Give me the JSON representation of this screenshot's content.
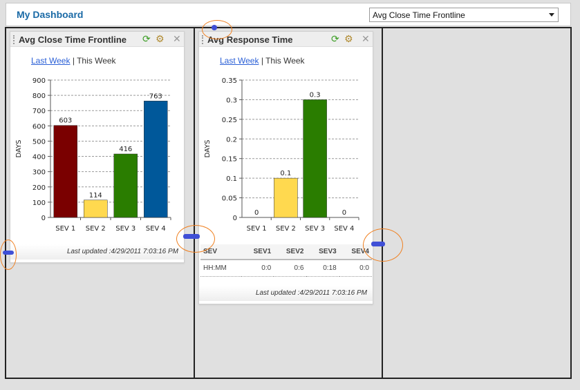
{
  "header": {
    "title": "My Dashboard",
    "select_value": "Avg Close Time Frontline"
  },
  "widgets": [
    {
      "title": "Avg Close Time Frontline",
      "link_last": "Last Week",
      "separator": "|",
      "link_this": "This Week",
      "footer": "Last updated :4/29/2011 7:03:16 PM"
    },
    {
      "title": "Avg Response Time",
      "link_last": "Last Week",
      "separator": "|",
      "link_this": "This Week",
      "footer": "Last updated :4/29/2011 7:03:16 PM",
      "table": {
        "headers": [
          "SEV",
          "SEV1",
          "SEV2",
          "SEV3",
          "SEV4"
        ],
        "rows": [
          [
            "HH:MM",
            "0:0",
            "0:6",
            "0:18",
            "0:0"
          ]
        ]
      }
    }
  ],
  "chart_data": [
    {
      "type": "bar",
      "ylabel": "DAYS",
      "categories": [
        "SEV 1",
        "SEV 2",
        "SEV 3",
        "SEV 4"
      ],
      "values": [
        603,
        114,
        416,
        763
      ],
      "labels": [
        "603",
        "114",
        "416",
        "763"
      ],
      "ylim": [
        0,
        900
      ],
      "yticks": [
        "0",
        "100",
        "200",
        "300",
        "400",
        "500",
        "600",
        "700",
        "800",
        "900"
      ],
      "colors": [
        "#7a0000",
        "#ffd94f",
        "#2a7d00",
        "#00589a"
      ],
      "grid": true
    },
    {
      "type": "bar",
      "ylabel": "DAYS",
      "categories": [
        "SEV 1",
        "SEV 2",
        "SEV 3",
        "SEV 4"
      ],
      "values": [
        0,
        0.1,
        0.3,
        0
      ],
      "labels": [
        "0",
        "0.1",
        "0.3",
        "0"
      ],
      "ylim": [
        0,
        0.35
      ],
      "yticks": [
        "0",
        "0.05",
        "0.1",
        "0.15",
        "0.2",
        "0.25",
        "0.3",
        "0.35"
      ],
      "colors": [
        "#7a0000",
        "#ffd94f",
        "#2a7d00",
        "#00589a"
      ],
      "grid": true
    }
  ]
}
